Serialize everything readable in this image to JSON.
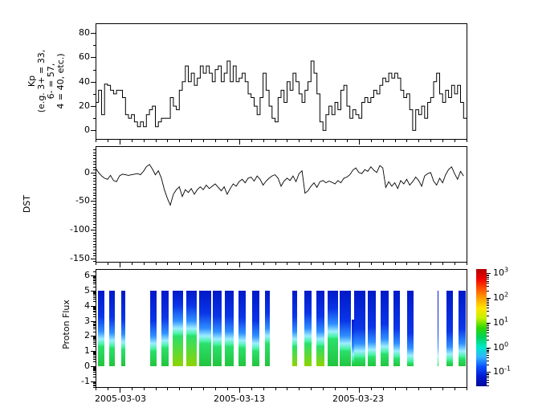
{
  "figure": {
    "background": "#ffffff",
    "axis_color": "#000000"
  },
  "x_axis": {
    "start_date": "2005-03-01",
    "days_total": 31,
    "minor_tick_every_days": 1,
    "major_tick_days": [
      2,
      12,
      22
    ],
    "tick_labels": [
      {
        "label": "2005-03-03",
        "day": 2
      },
      {
        "label": "2005-03-13",
        "day": 12
      },
      {
        "label": "2005-03-23",
        "day": 22
      }
    ]
  },
  "chart_data": [
    {
      "type": "line",
      "name": "kp-index",
      "draw_style": "steps",
      "ylabel_lines": [
        "Kp",
        "(e.g. 3+ = 33,",
        "6- = 57,",
        "4 = 40, etc.)"
      ],
      "ylim": [
        -7,
        88
      ],
      "yticks_major": [
        80,
        60,
        40,
        20,
        0
      ],
      "yticks_minor": [
        70,
        50,
        30,
        10
      ],
      "x_step_days": 0.25,
      "values": [
        23,
        33,
        13,
        38,
        37,
        33,
        30,
        33,
        33,
        27,
        13,
        10,
        13,
        7,
        3,
        7,
        3,
        13,
        17,
        20,
        3,
        7,
        10,
        10,
        10,
        27,
        20,
        17,
        33,
        40,
        53,
        40,
        47,
        37,
        43,
        53,
        47,
        53,
        47,
        40,
        50,
        53,
        40,
        47,
        57,
        40,
        53,
        40,
        43,
        47,
        40,
        30,
        27,
        20,
        13,
        27,
        47,
        33,
        20,
        10,
        7,
        27,
        33,
        23,
        40,
        33,
        47,
        40,
        30,
        23,
        33,
        40,
        57,
        47,
        30,
        7,
        0,
        13,
        20,
        13,
        23,
        17,
        33,
        37,
        20,
        10,
        17,
        13,
        10,
        23,
        27,
        23,
        27,
        33,
        30,
        37,
        43,
        40,
        47,
        43,
        47,
        43,
        33,
        27,
        30,
        17,
        0,
        17,
        13,
        20,
        10,
        23,
        27,
        40,
        47,
        30,
        23,
        33,
        27,
        37,
        30,
        37,
        23,
        10
      ]
    },
    {
      "type": "line",
      "name": "dst-index",
      "draw_style": "line",
      "ylabel": "DST",
      "ylim": [
        -156,
        46
      ],
      "yticks_major": [
        0,
        -50,
        -100,
        -150
      ],
      "yticks_minor_step": 5,
      "x_step_days": 0.25,
      "values": [
        8,
        0,
        -6,
        -10,
        -12,
        -5,
        -14,
        -16,
        -6,
        -3,
        -4,
        -5,
        -4,
        -3,
        -2,
        -4,
        2,
        10,
        14,
        6,
        -4,
        3,
        -10,
        -30,
        -45,
        -57,
        -38,
        -30,
        -25,
        -42,
        -30,
        -35,
        -28,
        -38,
        -30,
        -25,
        -30,
        -22,
        -28,
        -24,
        -20,
        -26,
        -32,
        -25,
        -38,
        -28,
        -20,
        -24,
        -16,
        -12,
        -18,
        -10,
        -8,
        -15,
        -6,
        -12,
        -22,
        -15,
        -10,
        -6,
        -4,
        -10,
        -24,
        -15,
        -10,
        -14,
        -6,
        -16,
        -2,
        3,
        -36,
        -32,
        -24,
        -18,
        -26,
        -16,
        -14,
        -18,
        -15,
        -17,
        -20,
        -14,
        -18,
        -10,
        -8,
        -4,
        4,
        8,
        0,
        -2,
        5,
        2,
        10,
        4,
        0,
        12,
        8,
        -26,
        -16,
        -24,
        -18,
        -28,
        -14,
        -20,
        -12,
        -22,
        -16,
        -8,
        -14,
        -24,
        -6,
        -2,
        0,
        -15,
        -22,
        -10,
        -18,
        -4,
        5,
        10,
        -2,
        -12,
        2,
        -6
      ]
    },
    {
      "type": "heatmap",
      "name": "proton-flux",
      "ylabel": "Proton Flux",
      "ylim": [
        -1.4,
        6.45
      ],
      "yticks_major": [
        6,
        5,
        4,
        3,
        2,
        1,
        0,
        -1
      ],
      "log_minor_ticks": true,
      "bar_value_top": 5,
      "bar_value_bottom": 0,
      "bars": [
        {
          "d0": 0.2,
          "d1": 0.74,
          "g": 1.3,
          "b": 0
        },
        {
          "d0": 1.14,
          "d1": 1.61,
          "g": 1.2,
          "b": 0
        },
        {
          "d0": 2.15,
          "d1": 2.48,
          "g": 1.1,
          "b": 0
        },
        {
          "d0": 4.56,
          "d1": 5.1,
          "g": 1.0,
          "b": 0
        },
        {
          "d0": 5.5,
          "d1": 6.11,
          "g": 1.2,
          "b": 0
        },
        {
          "d0": 6.44,
          "d1": 7.31,
          "g": 2.0,
          "b": 1
        },
        {
          "d0": 7.58,
          "d1": 8.45,
          "g": 2.0,
          "b": 1
        },
        {
          "d0": 8.66,
          "d1": 9.66,
          "g": 1.5,
          "b": 0
        },
        {
          "d0": 9.8,
          "d1": 10.54,
          "g": 1.3,
          "b": 0
        },
        {
          "d0": 10.8,
          "d1": 11.54,
          "g": 1.3,
          "b": 0
        },
        {
          "d0": 11.94,
          "d1": 12.55,
          "g": 1.2,
          "b": 0
        },
        {
          "d0": 13.08,
          "d1": 13.69,
          "g": 1.0,
          "b": 0
        },
        {
          "d0": 14.16,
          "d1": 14.56,
          "g": 1.5,
          "b": 0
        },
        {
          "d0": 16.44,
          "d1": 16.84,
          "g": 1.3,
          "b": 1
        },
        {
          "d0": 17.45,
          "d1": 18.05,
          "g": 1.5,
          "b": 1
        },
        {
          "d0": 18.45,
          "d1": 19.12,
          "g": 1.3,
          "b": 1
        },
        {
          "d0": 19.39,
          "d1": 20.27,
          "g": 1.8,
          "b": 0
        },
        {
          "d0": 20.4,
          "d1": 21.34,
          "g": 1.0,
          "b": 0
        },
        {
          "d0": 21.37,
          "d1": 21.61,
          "g": 0.3,
          "b": 0,
          "top": 3.1
        },
        {
          "d0": 21.61,
          "d1": 22.55,
          "g": 0.5,
          "b": 0
        },
        {
          "d0": 22.75,
          "d1": 23.42,
          "g": 0.6,
          "b": 0
        },
        {
          "d0": 23.82,
          "d1": 24.49,
          "g": 0.8,
          "b": 0
        },
        {
          "d0": 24.9,
          "d1": 25.43,
          "g": 0.5,
          "b": 0
        },
        {
          "d0": 26.04,
          "d1": 26.57,
          "g": 0.2,
          "b": 0
        },
        {
          "d0": 28.55,
          "d1": 28.62,
          "g": 0.2,
          "b": 0
        },
        {
          "d0": 29.32,
          "d1": 29.86,
          "g": 0.3,
          "b": 0
        },
        {
          "d0": 30.33,
          "d1": 30.93,
          "g": 0.5,
          "b": 0
        }
      ],
      "colorbar": {
        "scale": "log",
        "exp_range": [
          -1.57,
          3.17
        ],
        "tick_exponents": [
          3,
          2,
          1,
          0,
          -1
        ],
        "tick_base": "10",
        "colors_top_to_bottom": [
          "#b40000",
          "#f00000",
          "#ff5000",
          "#ffa000",
          "#ffe400",
          "#c8f000",
          "#30d800",
          "#00d25a",
          "#00e8c8",
          "#30b4ff",
          "#0a50ff",
          "#0018d2",
          "#000a9b"
        ]
      }
    }
  ]
}
